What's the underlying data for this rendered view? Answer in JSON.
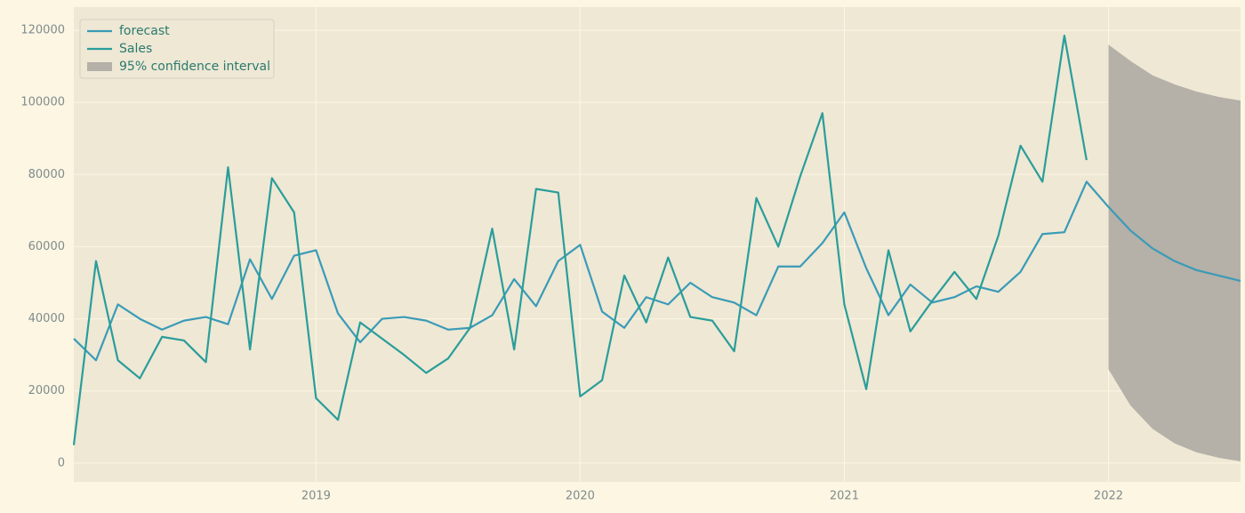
{
  "chart_data": {
    "type": "line",
    "ylim": [
      -5200,
      126400
    ],
    "yticks": [
      0,
      20000,
      40000,
      60000,
      80000,
      100000,
      120000
    ],
    "xlim": [
      2018.083,
      2022.5
    ],
    "xticks": [
      2019,
      2020,
      2021,
      2022
    ],
    "grid": true,
    "legend": "upper left",
    "series": [
      {
        "name": "forecast",
        "color": "#3a9bb7",
        "x": [
          2018.083,
          2018.167,
          2018.25,
          2018.333,
          2018.417,
          2018.5,
          2018.583,
          2018.667,
          2018.75,
          2018.833,
          2018.917,
          2019.0,
          2019.083,
          2019.167,
          2019.25,
          2019.333,
          2019.417,
          2019.5,
          2019.583,
          2019.667,
          2019.75,
          2019.833,
          2019.917,
          2020.0,
          2020.083,
          2020.167,
          2020.25,
          2020.333,
          2020.417,
          2020.5,
          2020.583,
          2020.667,
          2020.75,
          2020.833,
          2020.917,
          2021.0,
          2021.083,
          2021.167,
          2021.25,
          2021.333,
          2021.417,
          2021.5,
          2021.583,
          2021.667,
          2021.75,
          2021.833,
          2021.917,
          2022.0,
          2022.083,
          2022.167,
          2022.25,
          2022.333,
          2022.417,
          2022.5
        ],
        "values": [
          34500,
          28500,
          44000,
          40000,
          37000,
          39500,
          40500,
          38500,
          56500,
          45500,
          57500,
          59000,
          41500,
          33500,
          40000,
          40500,
          39500,
          37000,
          37500,
          41000,
          51000,
          43500,
          56000,
          60500,
          42000,
          37500,
          46000,
          44000,
          50000,
          46000,
          44500,
          41000,
          54500,
          54500,
          61000,
          69500,
          54000,
          41000,
          49500,
          44500,
          46000,
          49000,
          47500,
          53000,
          63500,
          64000,
          78000,
          71000,
          64500,
          59500,
          56000,
          53500,
          52000,
          50500
        ]
      },
      {
        "name": "Sales",
        "color": "#2a9d9a",
        "x": [
          2018.083,
          2018.167,
          2018.25,
          2018.333,
          2018.417,
          2018.5,
          2018.583,
          2018.667,
          2018.75,
          2018.833,
          2018.917,
          2019.0,
          2019.083,
          2019.167,
          2019.25,
          2019.333,
          2019.417,
          2019.5,
          2019.583,
          2019.667,
          2019.75,
          2019.833,
          2019.917,
          2020.0,
          2020.083,
          2020.167,
          2020.25,
          2020.333,
          2020.417,
          2020.5,
          2020.583,
          2020.667,
          2020.75,
          2020.833,
          2020.917,
          2021.0,
          2021.083,
          2021.167,
          2021.25,
          2021.333,
          2021.417,
          2021.5,
          2021.583,
          2021.667,
          2021.75,
          2021.833,
          2021.917
        ],
        "values": [
          5000,
          56000,
          28500,
          23500,
          35000,
          34000,
          28000,
          82000,
          31500,
          79000,
          69500,
          18000,
          12000,
          39000,
          34500,
          30000,
          25000,
          29000,
          37500,
          65000,
          31500,
          76000,
          75000,
          18500,
          23000,
          52000,
          39000,
          57000,
          40500,
          39500,
          31000,
          73500,
          60000,
          79500,
          97000,
          44000,
          20500,
          59000,
          36500,
          45000,
          53000,
          45500,
          63000,
          88000,
          78000,
          118500,
          84000
        ]
      }
    ],
    "band": {
      "name": "95% confidence interval",
      "color": "#b5b0a8",
      "x": [
        2022.0,
        2022.083,
        2022.167,
        2022.25,
        2022.333,
        2022.417,
        2022.5
      ],
      "upper": [
        116000,
        111500,
        107500,
        105000,
        103000,
        101500,
        100500
      ],
      "lower": [
        26000,
        16000,
        9500,
        5500,
        3000,
        1500,
        500
      ]
    }
  }
}
